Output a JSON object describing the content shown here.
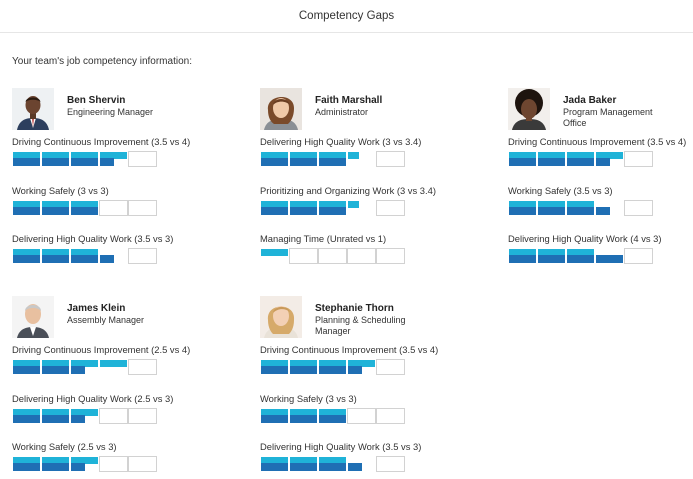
{
  "header": {
    "title": "Competency Gaps"
  },
  "intro": "Your team's job competency information:",
  "team": [
    {
      "name": "Ben Shervin",
      "role": "Engineering Manager",
      "avatar": "man-portrait-avatar",
      "competencies": [
        {
          "label": "Driving Continuous Improvement (3.5 vs 4)",
          "actual": 3.5,
          "required": 4
        },
        {
          "label": "Working Safely (3 vs 3)",
          "actual": 3,
          "required": 3
        },
        {
          "label": "Delivering High Quality Work (3.5 vs 3)",
          "actual": 3.5,
          "required": 3
        }
      ]
    },
    {
      "name": "Faith Marshall",
      "role": "Administrator",
      "avatar": "woman-portrait-avatar",
      "competencies": [
        {
          "label": "Delivering High Quality Work (3 vs 3.4)",
          "actual": 3,
          "required": 3.4
        },
        {
          "label": "Prioritizing and Organizing Work (3 vs 3.4)",
          "actual": 3,
          "required": 3.4
        },
        {
          "label": "Managing Time (Unrated vs 1)",
          "actual": 0,
          "required": 1
        }
      ]
    },
    {
      "name": "Jada Baker",
      "role": "Program Management Office",
      "avatar": "woman-portrait-avatar",
      "competencies": [
        {
          "label": "Driving Continuous Improvement (3.5 vs 4)",
          "actual": 3.5,
          "required": 4
        },
        {
          "label": "Working Safely (3.5 vs 3)",
          "actual": 3.5,
          "required": 3
        },
        {
          "label": "Delivering High Quality Work (4 vs 3)",
          "actual": 4,
          "required": 3
        }
      ]
    },
    {
      "name": "James Klein",
      "role": "Assembly Manager",
      "avatar": "man-portrait-avatar",
      "competencies": [
        {
          "label": "Driving Continuous Improvement (2.5 vs 4)",
          "actual": 2.5,
          "required": 4
        },
        {
          "label": "Delivering High Quality Work (2.5 vs 3)",
          "actual": 2.5,
          "required": 3
        },
        {
          "label": "Working Safely (2.5 vs 3)",
          "actual": 2.5,
          "required": 3
        }
      ]
    },
    {
      "name": "Stephanie Thorn",
      "role": "Planning & Scheduling Manager",
      "avatar": "woman-portrait-avatar",
      "competencies": [
        {
          "label": "Driving Continuous Improvement (3.5 vs 4)",
          "actual": 3.5,
          "required": 4
        },
        {
          "label": "Working Safely (3 vs 3)",
          "actual": 3,
          "required": 3
        },
        {
          "label": "Delivering High Quality Work (3.5 vs 3)",
          "actual": 3.5,
          "required": 3
        }
      ]
    }
  ],
  "scale_max": 5,
  "colors": {
    "required": "#1fb3d8",
    "actual": "#1f6fb4",
    "empty_border": "#d2d2d2"
  }
}
